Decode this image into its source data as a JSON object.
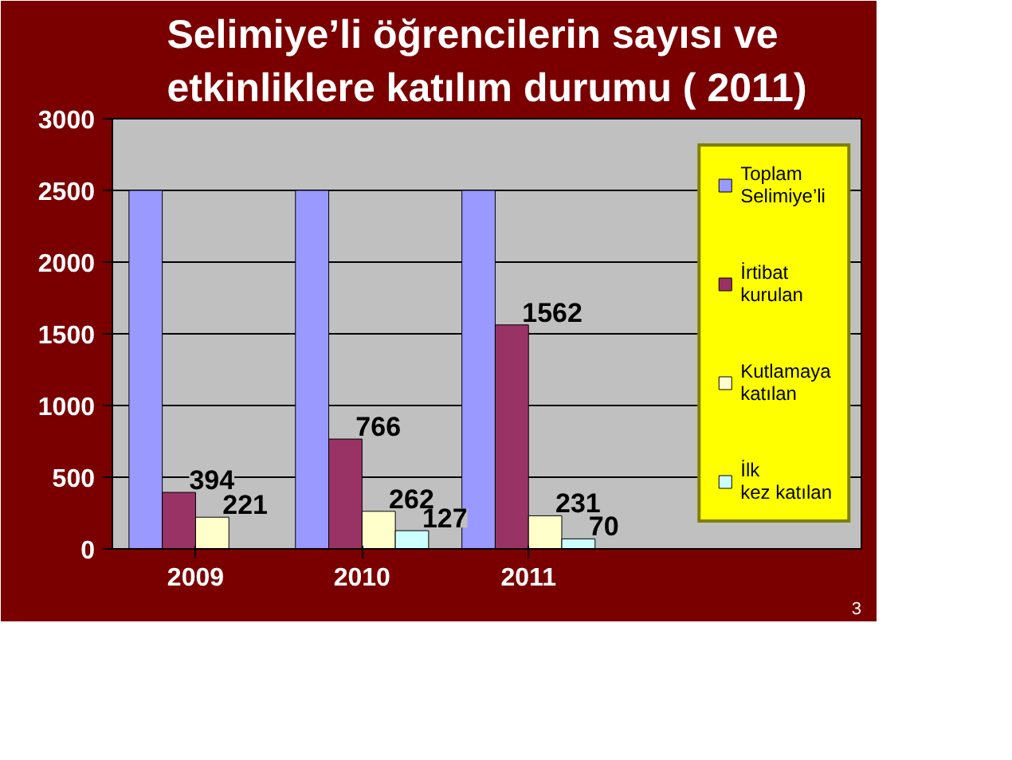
{
  "chart_data": {
    "type": "bar",
    "title": "Selimiye’li öğrencilerin sayısı  ve\netkinliklere katılım durumu ( 2011)",
    "categories": [
      "2009",
      "2010",
      "2011"
    ],
    "series": [
      {
        "name": "Toplam Selimiye’li",
        "color": "#9999ff",
        "values": [
          2500,
          2500,
          2500
        ],
        "value_labels": [
          null,
          null,
          null
        ]
      },
      {
        "name": "İrtibat kurulan",
        "color": "#993366",
        "values": [
          394,
          766,
          1562
        ],
        "value_labels": [
          "394",
          "766",
          "1562"
        ]
      },
      {
        "name": "Kutlamaya katılan",
        "color": "#ffffcc",
        "values": [
          221,
          262,
          231
        ],
        "value_labels": [
          "221",
          "262",
          "231"
        ]
      },
      {
        "name": "İlk kez katılan",
        "color": "#ccffff",
        "values": [
          null,
          127,
          70
        ],
        "value_labels": [
          null,
          "127",
          "70"
        ]
      }
    ],
    "ylim": [
      0,
      3000
    ],
    "yticks": [
      0,
      500,
      1000,
      1500,
      2000,
      2500,
      3000
    ],
    "grid": "y",
    "legend": "right",
    "annotations": [
      "3"
    ]
  }
}
